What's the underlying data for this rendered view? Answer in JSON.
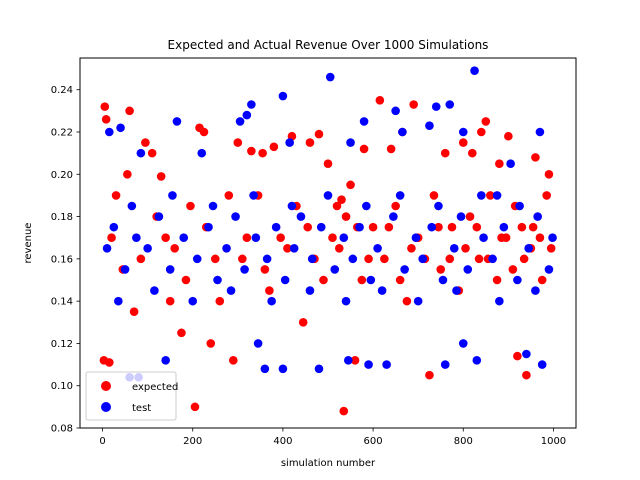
{
  "chart_data": {
    "type": "scatter",
    "title": "Expected and Actual Revenue Over 1000 Simulations",
    "xlabel": "simulation number",
    "ylabel": "revenue",
    "xlim": [
      -50,
      1050
    ],
    "ylim": [
      0.08,
      0.255
    ],
    "xticks": [
      "0",
      "200",
      "400",
      "600",
      "800",
      "1000"
    ],
    "yticks": [
      "0.08",
      "0.10",
      "0.12",
      "0.14",
      "0.16",
      "0.18",
      "0.20",
      "0.22",
      "0.24"
    ],
    "grid": false,
    "legend": "lower-left",
    "series": [
      {
        "name": "expected",
        "color": "#ff0000",
        "points": [
          [
            5,
            0.232
          ],
          [
            8,
            0.226
          ],
          [
            3,
            0.112
          ],
          [
            15,
            0.111
          ],
          [
            60,
            0.23
          ],
          [
            95,
            0.215
          ],
          [
            110,
            0.21
          ],
          [
            130,
            0.199
          ],
          [
            150,
            0.14
          ],
          [
            175,
            0.125
          ],
          [
            205,
            0.09
          ],
          [
            215,
            0.222
          ],
          [
            225,
            0.22
          ],
          [
            240,
            0.12
          ],
          [
            290,
            0.112
          ],
          [
            300,
            0.215
          ],
          [
            330,
            0.211
          ],
          [
            355,
            0.21
          ],
          [
            380,
            0.213
          ],
          [
            420,
            0.218
          ],
          [
            460,
            0.215
          ],
          [
            480,
            0.219
          ],
          [
            500,
            0.205
          ],
          [
            520,
            0.185
          ],
          [
            530,
            0.188
          ],
          [
            535,
            0.088
          ],
          [
            540,
            0.18
          ],
          [
            560,
            0.112
          ],
          [
            580,
            0.212
          ],
          [
            615,
            0.235
          ],
          [
            640,
            0.212
          ],
          [
            665,
            0.22
          ],
          [
            690,
            0.233
          ],
          [
            725,
            0.105
          ],
          [
            760,
            0.21
          ],
          [
            800,
            0.215
          ],
          [
            820,
            0.21
          ],
          [
            840,
            0.22
          ],
          [
            850,
            0.225
          ],
          [
            880,
            0.205
          ],
          [
            900,
            0.218
          ],
          [
            920,
            0.114
          ],
          [
            940,
            0.105
          ],
          [
            960,
            0.208
          ],
          [
            990,
            0.2
          ],
          [
            20,
            0.17
          ],
          [
            45,
            0.155
          ],
          [
            70,
            0.135
          ],
          [
            120,
            0.18
          ],
          [
            160,
            0.165
          ],
          [
            185,
            0.15
          ],
          [
            230,
            0.175
          ],
          [
            260,
            0.14
          ],
          [
            310,
            0.16
          ],
          [
            345,
            0.19
          ],
          [
            370,
            0.145
          ],
          [
            395,
            0.17
          ],
          [
            430,
            0.185
          ],
          [
            445,
            0.13
          ],
          [
            470,
            0.16
          ],
          [
            510,
            0.17
          ],
          [
            550,
            0.195
          ],
          [
            575,
            0.15
          ],
          [
            600,
            0.175
          ],
          [
            625,
            0.16
          ],
          [
            650,
            0.185
          ],
          [
            675,
            0.14
          ],
          [
            700,
            0.17
          ],
          [
            735,
            0.19
          ],
          [
            750,
            0.155
          ],
          [
            775,
            0.175
          ],
          [
            790,
            0.145
          ],
          [
            815,
            0.18
          ],
          [
            835,
            0.16
          ],
          [
            860,
            0.19
          ],
          [
            875,
            0.15
          ],
          [
            895,
            0.17
          ],
          [
            915,
            0.185
          ],
          [
            935,
            0.16
          ],
          [
            955,
            0.175
          ],
          [
            975,
            0.15
          ],
          [
            985,
            0.19
          ],
          [
            30,
            0.19
          ],
          [
            55,
            0.2
          ],
          [
            85,
            0.16
          ],
          [
            140,
            0.17
          ],
          [
            195,
            0.185
          ],
          [
            250,
            0.16
          ],
          [
            280,
            0.19
          ],
          [
            320,
            0.17
          ],
          [
            360,
            0.155
          ],
          [
            410,
            0.165
          ],
          [
            455,
            0.175
          ],
          [
            490,
            0.15
          ],
          [
            525,
            0.165
          ],
          [
            565,
            0.175
          ],
          [
            590,
            0.16
          ],
          [
            635,
            0.175
          ],
          [
            660,
            0.15
          ],
          [
            685,
            0.165
          ],
          [
            715,
            0.16
          ],
          [
            745,
            0.175
          ],
          [
            770,
            0.16
          ],
          [
            805,
            0.165
          ],
          [
            830,
            0.175
          ],
          [
            855,
            0.16
          ],
          [
            885,
            0.17
          ],
          [
            910,
            0.155
          ],
          [
            930,
            0.175
          ],
          [
            950,
            0.165
          ],
          [
            970,
            0.17
          ],
          [
            995,
            0.165
          ]
        ]
      },
      {
        "name": "test",
        "color": "#0000ff",
        "points": [
          [
            15,
            0.22
          ],
          [
            40,
            0.222
          ],
          [
            85,
            0.21
          ],
          [
            165,
            0.225
          ],
          [
            220,
            0.21
          ],
          [
            305,
            0.225
          ],
          [
            320,
            0.228
          ],
          [
            330,
            0.233
          ],
          [
            400,
            0.237
          ],
          [
            415,
            0.215
          ],
          [
            505,
            0.246
          ],
          [
            550,
            0.215
          ],
          [
            580,
            0.225
          ],
          [
            650,
            0.23
          ],
          [
            665,
            0.22
          ],
          [
            725,
            0.223
          ],
          [
            740,
            0.232
          ],
          [
            770,
            0.233
          ],
          [
            800,
            0.22
          ],
          [
            825,
            0.249
          ],
          [
            875,
            0.19
          ],
          [
            905,
            0.205
          ],
          [
            970,
            0.22
          ],
          [
            975,
            0.11
          ],
          [
            60,
            0.104
          ],
          [
            80,
            0.104
          ],
          [
            140,
            0.112
          ],
          [
            345,
            0.12
          ],
          [
            360,
            0.108
          ],
          [
            400,
            0.108
          ],
          [
            480,
            0.108
          ],
          [
            545,
            0.112
          ],
          [
            590,
            0.11
          ],
          [
            630,
            0.11
          ],
          [
            760,
            0.11
          ],
          [
            800,
            0.12
          ],
          [
            830,
            0.112
          ],
          [
            940,
            0.115
          ],
          [
            10,
            0.165
          ],
          [
            25,
            0.175
          ],
          [
            50,
            0.155
          ],
          [
            75,
            0.17
          ],
          [
            100,
            0.165
          ],
          [
            125,
            0.18
          ],
          [
            150,
            0.155
          ],
          [
            180,
            0.17
          ],
          [
            210,
            0.16
          ],
          [
            235,
            0.175
          ],
          [
            255,
            0.15
          ],
          [
            275,
            0.165
          ],
          [
            295,
            0.18
          ],
          [
            315,
            0.155
          ],
          [
            340,
            0.17
          ],
          [
            365,
            0.16
          ],
          [
            385,
            0.175
          ],
          [
            405,
            0.15
          ],
          [
            425,
            0.165
          ],
          [
            440,
            0.18
          ],
          [
            465,
            0.16
          ],
          [
            485,
            0.175
          ],
          [
            515,
            0.155
          ],
          [
            535,
            0.17
          ],
          [
            555,
            0.16
          ],
          [
            570,
            0.175
          ],
          [
            595,
            0.15
          ],
          [
            610,
            0.165
          ],
          [
            645,
            0.18
          ],
          [
            670,
            0.155
          ],
          [
            695,
            0.17
          ],
          [
            710,
            0.16
          ],
          [
            730,
            0.175
          ],
          [
            755,
            0.15
          ],
          [
            780,
            0.165
          ],
          [
            795,
            0.18
          ],
          [
            810,
            0.155
          ],
          [
            845,
            0.17
          ],
          [
            865,
            0.16
          ],
          [
            890,
            0.175
          ],
          [
            920,
            0.15
          ],
          [
            945,
            0.165
          ],
          [
            965,
            0.18
          ],
          [
            990,
            0.155
          ],
          [
            35,
            0.14
          ],
          [
            65,
            0.185
          ],
          [
            115,
            0.145
          ],
          [
            155,
            0.19
          ],
          [
            200,
            0.14
          ],
          [
            245,
            0.185
          ],
          [
            285,
            0.145
          ],
          [
            335,
            0.19
          ],
          [
            375,
            0.14
          ],
          [
            420,
            0.185
          ],
          [
            460,
            0.145
          ],
          [
            500,
            0.19
          ],
          [
            540,
            0.14
          ],
          [
            585,
            0.185
          ],
          [
            620,
            0.145
          ],
          [
            660,
            0.19
          ],
          [
            700,
            0.14
          ],
          [
            745,
            0.185
          ],
          [
            785,
            0.145
          ],
          [
            840,
            0.19
          ],
          [
            880,
            0.14
          ],
          [
            925,
            0.185
          ],
          [
            960,
            0.145
          ],
          [
            998,
            0.17
          ]
        ]
      }
    ]
  }
}
